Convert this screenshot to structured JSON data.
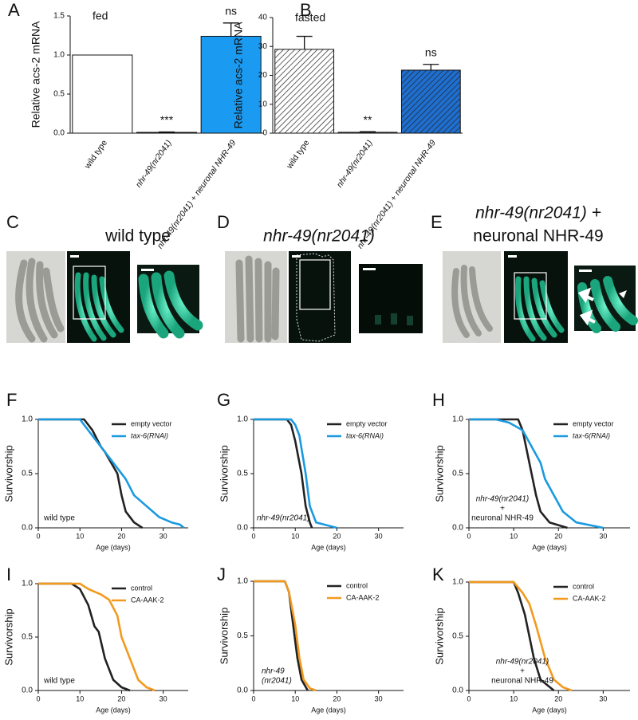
{
  "chart_data": [
    {
      "type": "bar",
      "panel": "A",
      "label": "fed",
      "ylabel": "Relative acs-2 mRNA",
      "categories": [
        "wild type",
        "nhr-49(nr2041)",
        "nhr-49(nr2041) + neuronal NHR-49"
      ],
      "values": [
        1.0,
        0.01,
        1.24
      ],
      "errors": [
        0,
        0.005,
        0.17
      ],
      "colors": [
        "#ffffff",
        "#ffffff",
        "#1a9af0"
      ],
      "hatch": false,
      "annotations": [
        {
          "index": 1,
          "text": "***"
        },
        {
          "index": 2,
          "text": "ns"
        }
      ],
      "ylim": [
        0,
        1.5
      ],
      "yticks": [
        {
          "value": 0,
          "label": "0.0"
        },
        {
          "value": 0.5,
          "label": "0.5"
        },
        {
          "value": 1,
          "label": "1.0"
        },
        {
          "value": 1.5,
          "label": "1.5"
        }
      ]
    },
    {
      "type": "bar",
      "panel": "B",
      "label": "fasted",
      "ylabel": "Relative acs-2 mRNA",
      "categories": [
        "wild type",
        "nhr-49(nr2041)",
        "nhr-49(nr2041) + neuronal NHR-49"
      ],
      "values": [
        29,
        0.3,
        21.8
      ],
      "errors": [
        4.5,
        0.2,
        2
      ],
      "colors": [
        "#ffffff",
        "#ffffff",
        "#1f6fd0"
      ],
      "hatch": true,
      "annotations": [
        {
          "index": 1,
          "text": "**"
        },
        {
          "index": 2,
          "text": "ns"
        }
      ],
      "ylim": [
        0,
        40
      ],
      "yticks": [
        0,
        10,
        20,
        30,
        40
      ]
    },
    {
      "type": "line",
      "panel": "F",
      "xlabel": "Age (days)",
      "ylabel": "Survivorship",
      "annotation": [
        "wild type"
      ],
      "legend": "upper right",
      "xlim": [
        0,
        36
      ],
      "xticks": [
        0,
        10,
        20,
        30
      ],
      "ylim": [
        0,
        1
      ],
      "yticks": [
        {
          "value": 0,
          "label": "0.0"
        },
        {
          "value": 0.5,
          "label": "0.5"
        },
        {
          "value": 1,
          "label": "1.0"
        }
      ],
      "series": [
        {
          "name": "empty vector",
          "color": "#222222",
          "x": [
            0,
            11,
            13,
            15,
            16,
            19,
            20,
            21,
            23,
            25
          ],
          "values": [
            1,
            1,
            0.9,
            0.75,
            0.7,
            0.5,
            0.3,
            0.15,
            0.05,
            0
          ]
        },
        {
          "name": "tax-6(RNAi)",
          "color": "#1a9ae0",
          "x": [
            0,
            10,
            11,
            13,
            15,
            17,
            19,
            21,
            23,
            26,
            29,
            32,
            34,
            35
          ],
          "values": [
            1,
            1,
            0.95,
            0.85,
            0.75,
            0.65,
            0.55,
            0.45,
            0.3,
            0.2,
            0.1,
            0.05,
            0.03,
            0
          ]
        }
      ]
    },
    {
      "type": "line",
      "panel": "G",
      "xlabel": "Age (days)",
      "ylabel": "Survivorship",
      "annotation": [
        "nhr-49(nr2041)"
      ],
      "legend": "upper right",
      "xlim": [
        0,
        36
      ],
      "xticks": [
        0,
        10,
        20,
        30
      ],
      "ylim": [
        0,
        1
      ],
      "yticks": [
        {
          "value": 0,
          "label": "0.0"
        },
        {
          "value": 0.5,
          "label": "0.5"
        },
        {
          "value": 1,
          "label": "1.0"
        }
      ],
      "series": [
        {
          "name": "empty vector",
          "color": "#222222",
          "x": [
            0,
            8,
            9,
            10,
            11.5,
            12.5,
            13.5,
            14
          ],
          "values": [
            1,
            1,
            0.95,
            0.8,
            0.5,
            0.2,
            0.05,
            0
          ]
        },
        {
          "name": "tax-6(RNAi)",
          "color": "#1a9ae0",
          "x": [
            0,
            9,
            10,
            11,
            12.5,
            13.5,
            15,
            20
          ],
          "values": [
            1,
            1,
            0.95,
            0.85,
            0.5,
            0.2,
            0.05,
            0
          ]
        }
      ]
    },
    {
      "type": "line",
      "panel": "H",
      "xlabel": "Age (days)",
      "ylabel": "Survivorship",
      "annotation": [
        "nhr-49(nr2041)",
        "+",
        "neuronal NHR-49"
      ],
      "legend": "upper right",
      "xlim": [
        0,
        36
      ],
      "xticks": [
        0,
        10,
        20,
        30
      ],
      "ylim": [
        0,
        1
      ],
      "yticks": [
        {
          "value": 0,
          "label": "0.0"
        },
        {
          "value": 0.5,
          "label": "0.5"
        },
        {
          "value": 1,
          "label": "1.0"
        }
      ],
      "series": [
        {
          "name": "empty vector",
          "color": "#222222",
          "x": [
            0,
            11,
            12,
            13,
            14,
            15,
            16,
            18,
            22
          ],
          "values": [
            1,
            1,
            0.9,
            0.7,
            0.5,
            0.3,
            0.15,
            0.05,
            0
          ]
        },
        {
          "name": "tax-6(RNAi)",
          "color": "#1a9ae0",
          "x": [
            0,
            6,
            9,
            12,
            14,
            16,
            17,
            19,
            21,
            24,
            30
          ],
          "values": [
            1,
            1,
            0.97,
            0.9,
            0.75,
            0.6,
            0.45,
            0.3,
            0.15,
            0.05,
            0
          ]
        }
      ]
    },
    {
      "type": "line",
      "panel": "I",
      "xlabel": "Age (days)",
      "ylabel": "Survivorship",
      "annotation": [
        "wild type"
      ],
      "legend": "upper right",
      "xlim": [
        0,
        36
      ],
      "xticks": [
        0,
        10,
        20,
        30
      ],
      "ylim": [
        0,
        1
      ],
      "yticks": [
        {
          "value": 0,
          "label": "0.0"
        },
        {
          "value": 0.5,
          "label": "0.5"
        },
        {
          "value": 1,
          "label": "1.0"
        }
      ],
      "series": [
        {
          "name": "control",
          "color": "#222222",
          "x": [
            0,
            8,
            10,
            12,
            13.5,
            14.5,
            16,
            18,
            20,
            22
          ],
          "values": [
            1,
            1,
            0.95,
            0.8,
            0.6,
            0.55,
            0.3,
            0.1,
            0.03,
            0
          ]
        },
        {
          "name": "CA-AAK-2",
          "color": "#f39a1e",
          "x": [
            0,
            10,
            12,
            15,
            17,
            19,
            20,
            22,
            24,
            26,
            28
          ],
          "values": [
            1,
            1,
            0.95,
            0.9,
            0.85,
            0.7,
            0.5,
            0.3,
            0.1,
            0.03,
            0
          ]
        }
      ]
    },
    {
      "type": "line",
      "panel": "J",
      "xlabel": "Age (days)",
      "ylabel": "Survivorship",
      "annotation": [
        "nhr-49",
        "(nr2041)"
      ],
      "legend": "upper right",
      "xlim": [
        0,
        36
      ],
      "xticks": [
        0,
        10,
        20,
        30
      ],
      "ylim": [
        0,
        1
      ],
      "yticks": [
        {
          "value": 0,
          "label": "0.0"
        },
        {
          "value": 0.5,
          "label": "0.5"
        },
        {
          "value": 1,
          "label": "1.0"
        }
      ],
      "series": [
        {
          "name": "control",
          "color": "#222222",
          "x": [
            0,
            7.5,
            8.5,
            9.5,
            10.5,
            11.5,
            13
          ],
          "values": [
            1,
            1,
            0.9,
            0.6,
            0.3,
            0.1,
            0
          ]
        },
        {
          "name": "CA-AAK-2",
          "color": "#f39a1e",
          "x": [
            0,
            7.5,
            8.5,
            10,
            11,
            12,
            13.5,
            15
          ],
          "values": [
            1,
            1,
            0.9,
            0.6,
            0.3,
            0.1,
            0.02,
            0
          ]
        }
      ]
    },
    {
      "type": "line",
      "panel": "K",
      "xlabel": "Age (days)",
      "ylabel": "Survivorship",
      "annotation": [
        "nhr-49(nr2041)",
        "+",
        "neuronal NHR-49"
      ],
      "legend": "upper right",
      "xlim": [
        0,
        36
      ],
      "xticks": [
        0,
        10,
        20,
        30
      ],
      "ylim": [
        0,
        1
      ],
      "yticks": [
        {
          "value": 0,
          "label": "0.0"
        },
        {
          "value": 0.5,
          "label": "0.5"
        },
        {
          "value": 1,
          "label": "1.0"
        }
      ],
      "series": [
        {
          "name": "control",
          "color": "#222222",
          "x": [
            0,
            10,
            11,
            12.5,
            13.5,
            14.5,
            16,
            19
          ],
          "values": [
            1,
            1,
            0.9,
            0.7,
            0.5,
            0.3,
            0.1,
            0
          ]
        },
        {
          "name": "CA-AAK-2",
          "color": "#f39a1e",
          "x": [
            0,
            10,
            12,
            13.5,
            15,
            16,
            17,
            19,
            21,
            23
          ],
          "values": [
            1,
            1,
            0.9,
            0.8,
            0.6,
            0.45,
            0.3,
            0.1,
            0.03,
            0
          ]
        }
      ]
    }
  ],
  "image_panels": [
    {
      "panel": "C",
      "title": [
        "wild type"
      ]
    },
    {
      "panel": "D",
      "title": [
        "nhr-49(nr2041)"
      ]
    },
    {
      "panel": "E",
      "title": [
        "nhr-49(nr2041) +",
        "neuronal NHR-49"
      ]
    }
  ]
}
